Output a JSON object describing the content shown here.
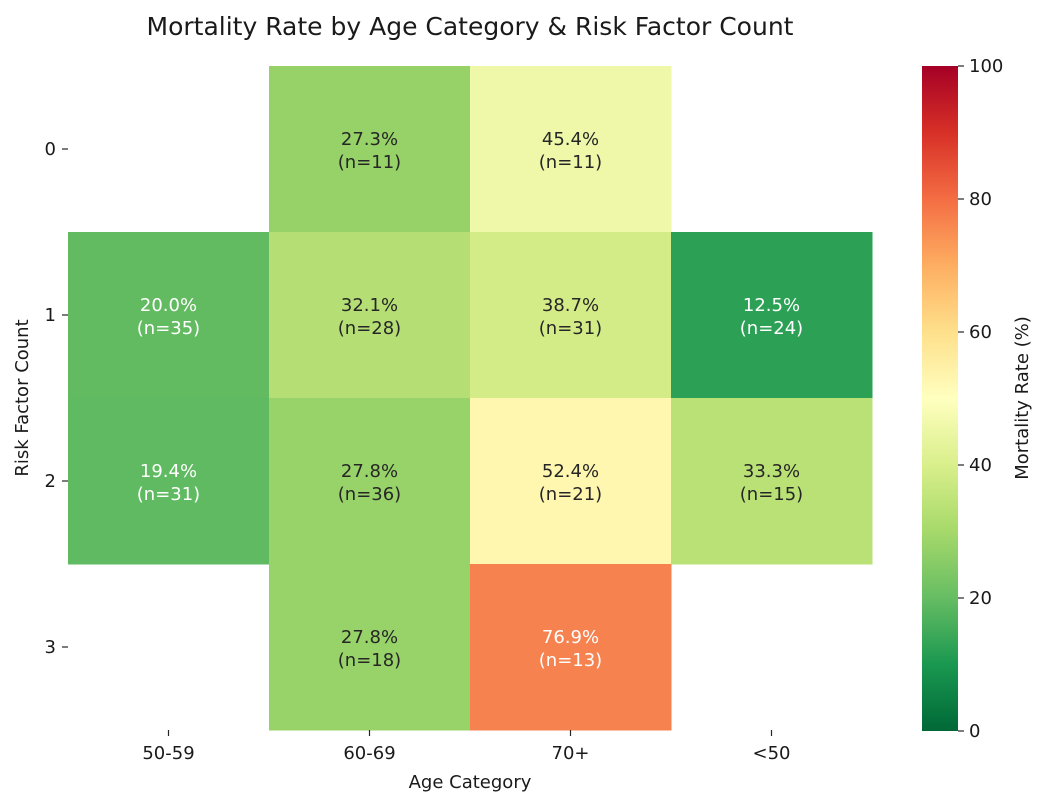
{
  "chart_data": {
    "type": "heatmap",
    "title": "Mortality Rate by Age Category & Risk Factor Count",
    "xlabel": "Age Category",
    "ylabel": "Risk Factor Count",
    "x_categories": [
      "50-59",
      "60-69",
      "70+",
      "<50"
    ],
    "y_categories": [
      "0",
      "1",
      "2",
      "3"
    ],
    "cells": [
      {
        "x": "60-69",
        "y": "0",
        "value": 27.3,
        "n": 11,
        "label": "27.3%",
        "n_label": "(n=11)",
        "color": "#96d268"
      },
      {
        "x": "70+",
        "y": "0",
        "value": 45.4,
        "n": 11,
        "label": "45.4%",
        "n_label": "(n=11)",
        "color": "#eef8a8"
      },
      {
        "x": "50-59",
        "y": "1",
        "value": 20.0,
        "n": 35,
        "label": "20.0%",
        "n_label": "(n=35)",
        "color": "#63bb61"
      },
      {
        "x": "60-69",
        "y": "1",
        "value": 32.1,
        "n": 28,
        "label": "32.1%",
        "n_label": "(n=28)",
        "color": "#b5df75"
      },
      {
        "x": "70+",
        "y": "1",
        "value": 38.7,
        "n": 31,
        "label": "38.7%",
        "n_label": "(n=31)",
        "color": "#d3ec87"
      },
      {
        "x": "<50",
        "y": "1",
        "value": 12.5,
        "n": 24,
        "label": "12.5%",
        "n_label": "(n=24)",
        "color": "#2ca156"
      },
      {
        "x": "50-59",
        "y": "2",
        "value": 19.4,
        "n": 31,
        "label": "19.4%",
        "n_label": "(n=31)",
        "color": "#5fba61"
      },
      {
        "x": "60-69",
        "y": "2",
        "value": 27.8,
        "n": 36,
        "label": "27.8%",
        "n_label": "(n=36)",
        "color": "#98d36a"
      },
      {
        "x": "70+",
        "y": "2",
        "value": 52.4,
        "n": 21,
        "label": "52.4%",
        "n_label": "(n=21)",
        "color": "#fff7b0"
      },
      {
        "x": "<50",
        "y": "2",
        "value": 33.3,
        "n": 15,
        "label": "33.3%",
        "n_label": "(n=15)",
        "color": "#b9e176"
      },
      {
        "x": "60-69",
        "y": "3",
        "value": 27.8,
        "n": 18,
        "label": "27.8%",
        "n_label": "(n=18)",
        "color": "#98d36a"
      },
      {
        "x": "70+",
        "y": "3",
        "value": 76.9,
        "n": 13,
        "label": "76.9%",
        "n_label": "(n=13)",
        "color": "#f6834f"
      }
    ],
    "colorbar": {
      "label": "Mortality Rate (%)",
      "range": [
        0,
        100
      ],
      "ticks": [
        0,
        20,
        40,
        60,
        80,
        100
      ],
      "colormap": "RdYlGn_r",
      "stops": [
        "#006837",
        "#1a9850",
        "#66bd63",
        "#a6d96a",
        "#d9ef8b",
        "#ffffbf",
        "#fee08b",
        "#fdae61",
        "#f46d43",
        "#d73027",
        "#a50026"
      ]
    },
    "grid": false
  }
}
